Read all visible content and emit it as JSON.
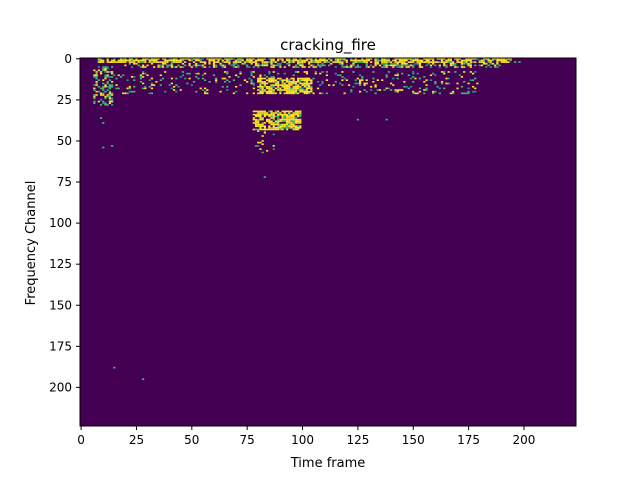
{
  "chart_data": {
    "type": "heatmap",
    "title": "cracking_fire",
    "xlabel": "Time frame",
    "ylabel": "Frequency Channel",
    "xlim": [
      0,
      224
    ],
    "ylim": [
      224,
      0
    ],
    "x_ticks": [
      0,
      25,
      50,
      75,
      100,
      125,
      150,
      175,
      200
    ],
    "y_ticks": [
      0,
      25,
      50,
      75,
      100,
      125,
      150,
      175,
      200
    ],
    "colormap": {
      "background": "#440154",
      "low": "#3fbc73",
      "mid": "#1f9e89",
      "high": "#fde725"
    },
    "grid": false,
    "regions": [
      {
        "x": [
          8,
          195
        ],
        "y": [
          0,
          3
        ],
        "intensity": "high"
      },
      {
        "x": [
          20,
          190
        ],
        "y": [
          3,
          6
        ],
        "intensity": "mixed"
      },
      {
        "x": [
          6,
          15
        ],
        "y": [
          5,
          29
        ],
        "intensity": "mixed"
      },
      {
        "x": [
          15,
          180
        ],
        "y": [
          8,
          22
        ],
        "intensity": "sparse"
      },
      {
        "x": [
          80,
          105
        ],
        "y": [
          12,
          22
        ],
        "intensity": "high"
      },
      {
        "x": [
          78,
          100
        ],
        "y": [
          32,
          44
        ],
        "intensity": "high"
      },
      {
        "x": [
          78,
          88
        ],
        "y": [
          44,
          58
        ],
        "intensity": "sparse"
      }
    ],
    "points": [
      [
        15,
        188
      ],
      [
        28,
        195
      ],
      [
        83,
        72
      ],
      [
        10,
        54
      ],
      [
        14,
        53
      ],
      [
        9,
        36
      ],
      [
        10,
        39
      ],
      [
        125,
        37
      ],
      [
        138,
        37
      ],
      [
        196,
        2
      ],
      [
        198,
        2
      ]
    ]
  }
}
